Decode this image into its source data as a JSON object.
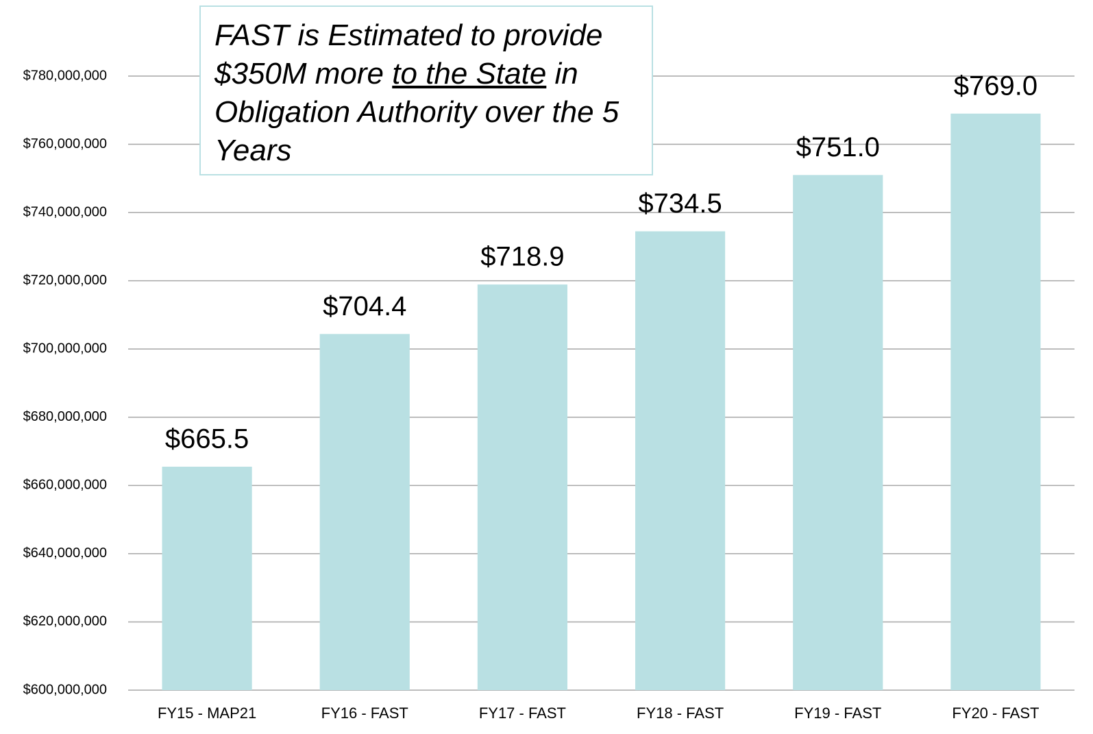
{
  "chart_data": {
    "type": "bar",
    "annotation": [
      "FAST is Estimated to provide $350M more ",
      "to the State",
      " in Obligation Authority over the 5 Years"
    ],
    "categories": [
      "FY15 - MAP21",
      "FY16 - FAST",
      "FY17 - FAST",
      "FY18 - FAST",
      "FY19 - FAST",
      "FY20 - FAST"
    ],
    "values": [
      665500000,
      704400000,
      718900000,
      734500000,
      751000000,
      769000000
    ],
    "value_labels": [
      "$665.5",
      "$704.4",
      "$718.9",
      "$734.5",
      "$751.0",
      "$769.0"
    ],
    "color": "#b9e0e3",
    "ylim": [
      600000000,
      780000000
    ],
    "yticks": [
      {
        "value": 600000000,
        "label": "$600,000,000"
      },
      {
        "value": 620000000,
        "label": "$620,000,000"
      },
      {
        "value": 640000000,
        "label": "$640,000,000"
      },
      {
        "value": 660000000,
        "label": "$660,000,000"
      },
      {
        "value": 680000000,
        "label": "$680,000,000"
      },
      {
        "value": 700000000,
        "label": "$700,000,000"
      },
      {
        "value": 720000000,
        "label": "$720,000,000"
      },
      {
        "value": 740000000,
        "label": "$740,000,000"
      },
      {
        "value": 760000000,
        "label": "$760,000,000"
      },
      {
        "value": 780000000,
        "label": "$780,000,000"
      }
    ],
    "grid": true
  }
}
